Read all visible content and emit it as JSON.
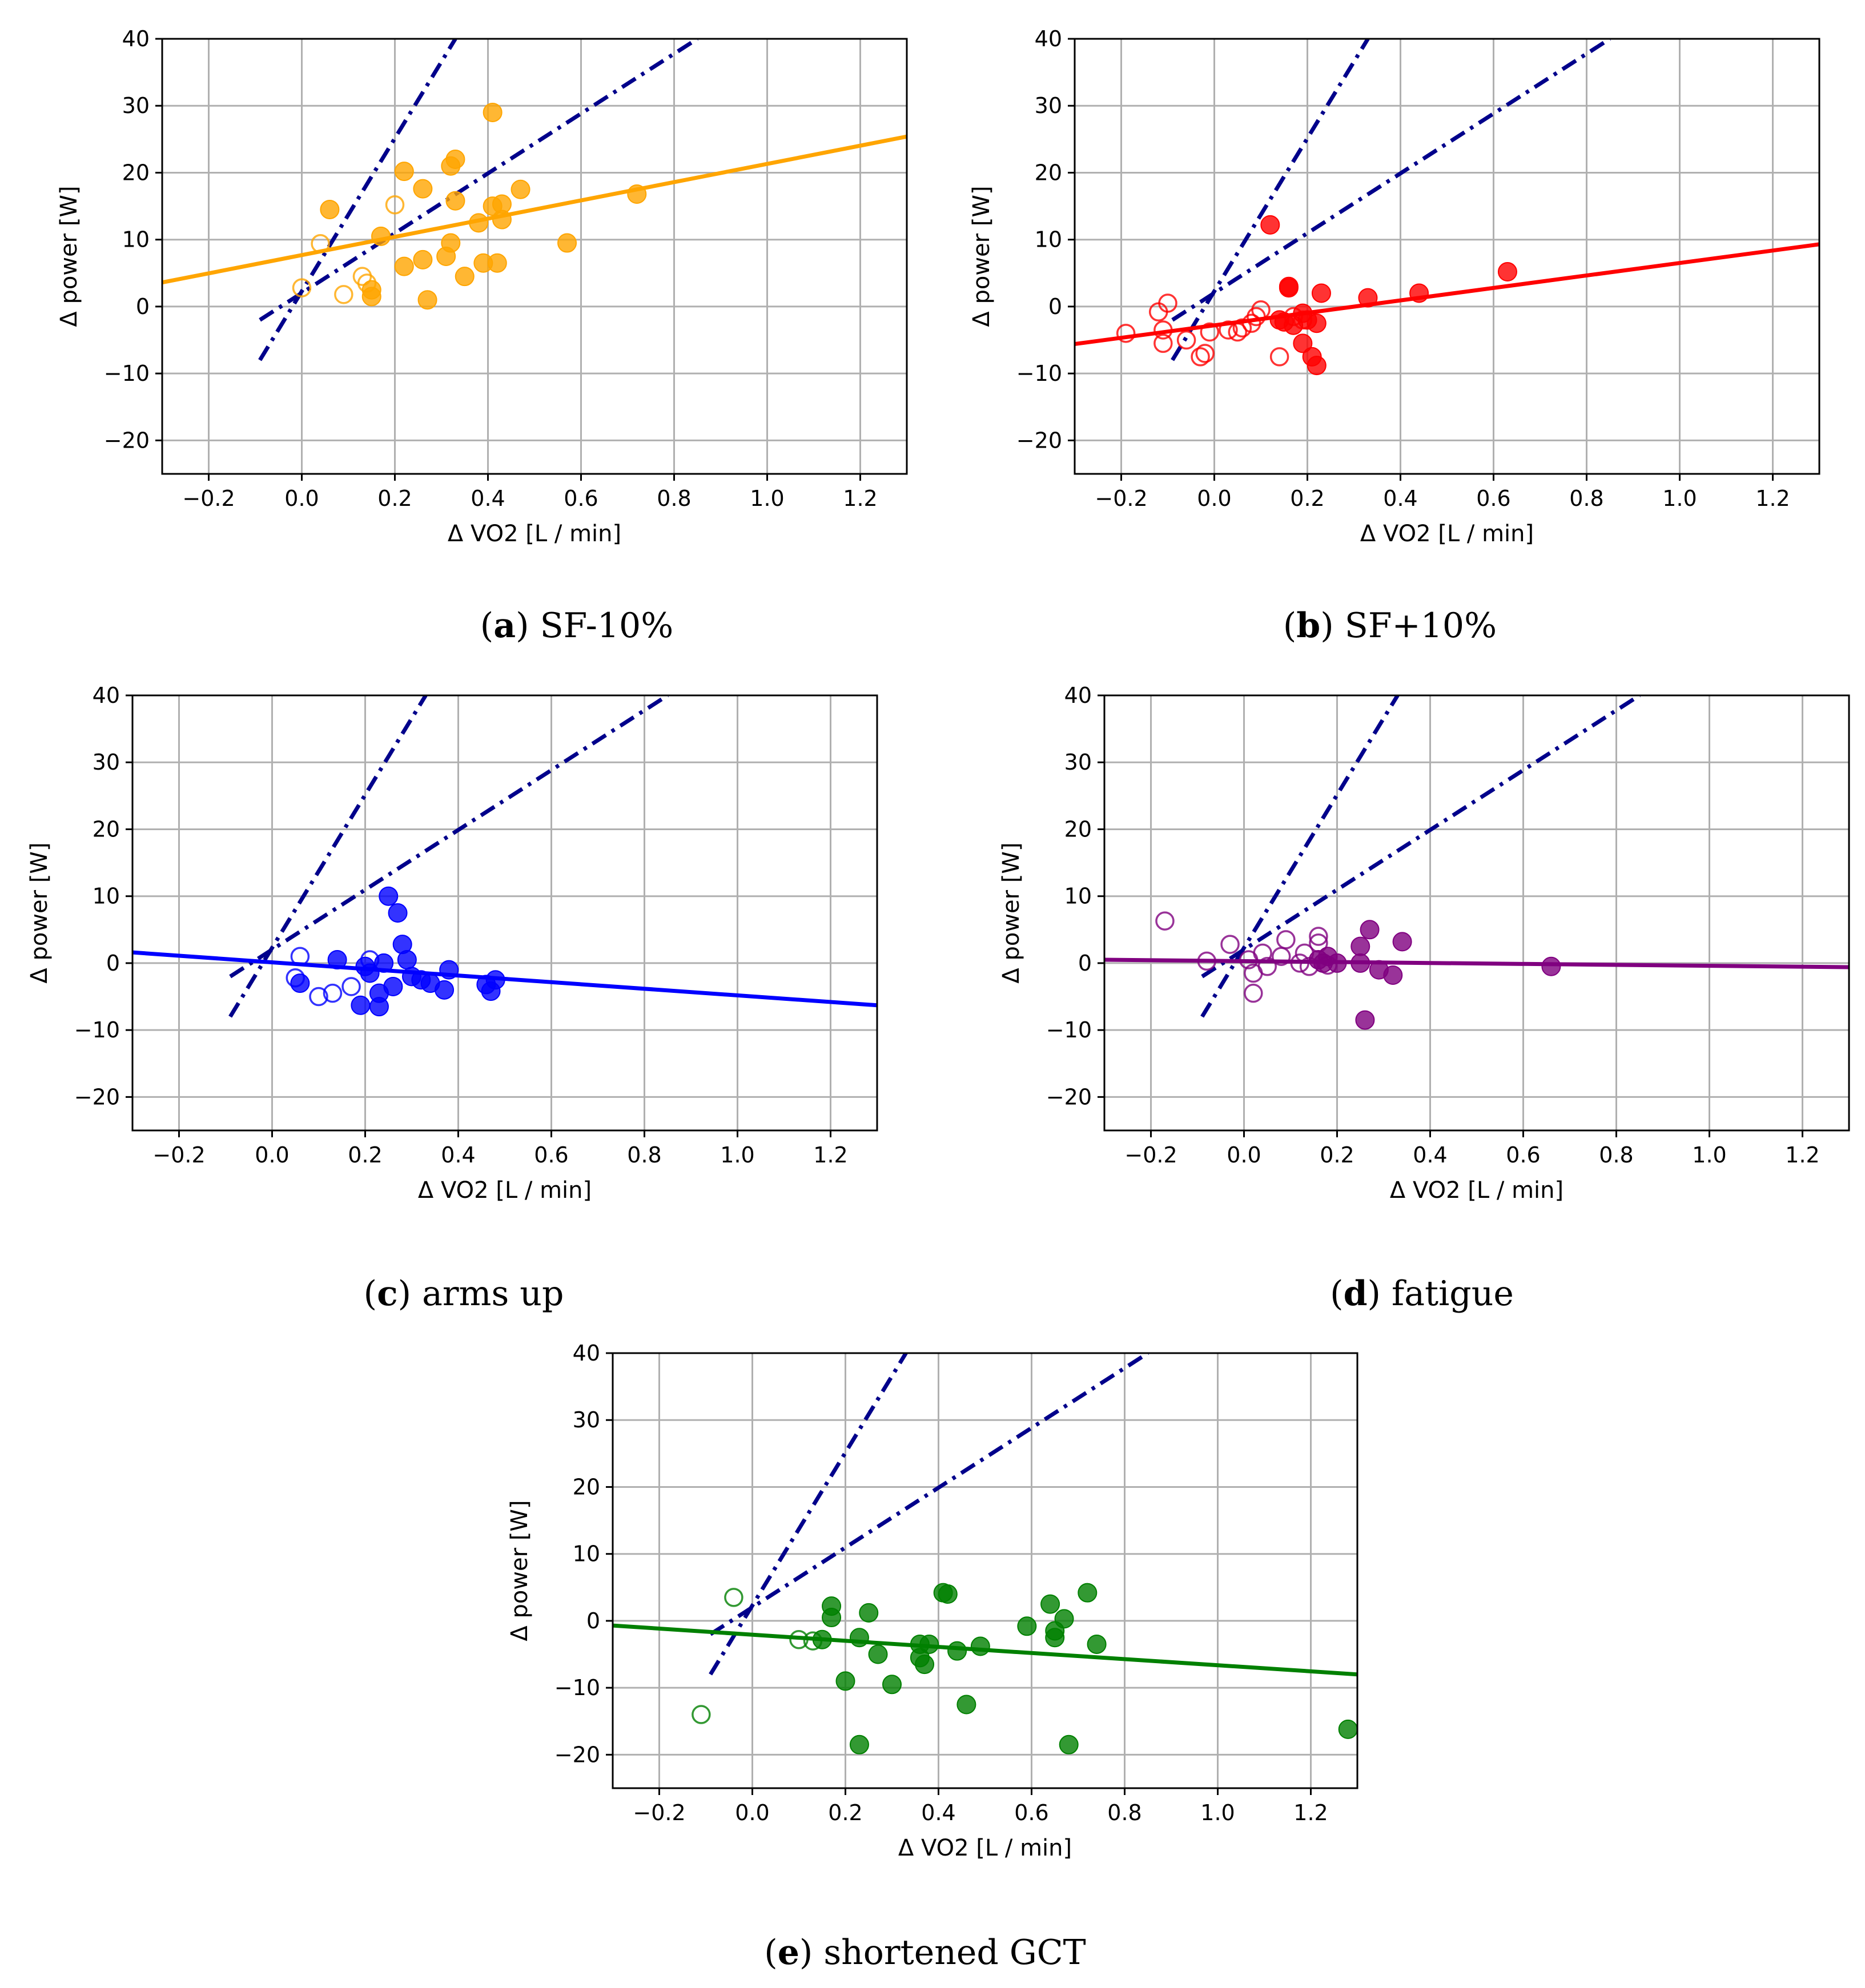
{
  "figure": {
    "captions": [
      {
        "letter": "a",
        "text": "SF-10%"
      },
      {
        "letter": "b",
        "text": "SF+10%"
      },
      {
        "letter": "c",
        "text": "arms up"
      },
      {
        "letter": "d",
        "text": "fatigue"
      },
      {
        "letter": "e",
        "text": "shortened GCT"
      }
    ]
  },
  "chart_data": [
    {
      "type": "scatter",
      "id": "a",
      "caption": "SF-10%",
      "xlabel": "Δ VO2 [L / min]",
      "ylabel": "Δ power [W]",
      "xlim": [
        -0.3,
        1.3
      ],
      "ylim": [
        -25,
        40
      ],
      "xticks": [
        -0.2,
        0.0,
        0.2,
        0.4,
        0.6,
        0.8,
        1.0,
        1.2
      ],
      "yticks": [
        -20,
        -10,
        0,
        10,
        20,
        30,
        40
      ],
      "grid": true,
      "color": "#FFA500",
      "fit_line": {
        "x": [
          -0.3,
          1.3
        ],
        "y": [
          3.6,
          25.4
        ]
      },
      "reference_lines": [
        {
          "style": "dashdot",
          "color": "#00008B",
          "x": [
            -0.09,
            0.33
          ],
          "y": [
            -8,
            40
          ]
        },
        {
          "style": "dashdot",
          "color": "#00008B",
          "x": [
            -0.09,
            0.85
          ],
          "y": [
            -2,
            40
          ]
        }
      ],
      "points_filled": [
        [
          0.06,
          14.5
        ],
        [
          0.17,
          10.5
        ],
        [
          0.22,
          20.2
        ],
        [
          0.22,
          6.0
        ],
        [
          0.26,
          17.6
        ],
        [
          0.26,
          7.0
        ],
        [
          0.27,
          1.0
        ],
        [
          0.31,
          7.5
        ],
        [
          0.32,
          9.5
        ],
        [
          0.32,
          21.0
        ],
        [
          0.33,
          22.0
        ],
        [
          0.33,
          15.8
        ],
        [
          0.35,
          4.5
        ],
        [
          0.38,
          12.5
        ],
        [
          0.39,
          6.5
        ],
        [
          0.41,
          29.0
        ],
        [
          0.41,
          15.0
        ],
        [
          0.42,
          6.5
        ],
        [
          0.43,
          13.0
        ],
        [
          0.43,
          15.3
        ],
        [
          0.47,
          17.5
        ],
        [
          0.57,
          9.5
        ],
        [
          0.72,
          16.8
        ],
        [
          0.15,
          2.5
        ],
        [
          0.15,
          1.5
        ]
      ],
      "points_open": [
        [
          0.0,
          2.8
        ],
        [
          0.04,
          9.4
        ],
        [
          0.09,
          1.8
        ],
        [
          0.13,
          4.5
        ],
        [
          0.14,
          3.5
        ],
        [
          0.2,
          15.2
        ]
      ]
    },
    {
      "type": "scatter",
      "id": "b",
      "caption": "SF+10%",
      "xlabel": "Δ VO2 [L / min]",
      "ylabel": "Δ power [W]",
      "xlim": [
        -0.3,
        1.3
      ],
      "ylim": [
        -25,
        40
      ],
      "xticks": [
        -0.2,
        0.0,
        0.2,
        0.4,
        0.6,
        0.8,
        1.0,
        1.2
      ],
      "yticks": [
        -20,
        -10,
        0,
        10,
        20,
        30,
        40
      ],
      "grid": true,
      "color": "#FF0000",
      "fit_line": {
        "x": [
          -0.3,
          1.3
        ],
        "y": [
          -5.6,
          9.3
        ]
      },
      "reference_lines": [
        {
          "style": "dashdot",
          "color": "#00008B",
          "x": [
            -0.09,
            0.33
          ],
          "y": [
            -8,
            40
          ]
        },
        {
          "style": "dashdot",
          "color": "#00008B",
          "x": [
            -0.09,
            0.85
          ],
          "y": [
            -2,
            40
          ]
        }
      ],
      "points_filled": [
        [
          0.12,
          12.2
        ],
        [
          0.14,
          -2.0
        ],
        [
          0.15,
          -2.3
        ],
        [
          0.16,
          3.0
        ],
        [
          0.16,
          2.8
        ],
        [
          0.17,
          -2.8
        ],
        [
          0.19,
          -5.5
        ],
        [
          0.19,
          -1.0
        ],
        [
          0.2,
          -2.0
        ],
        [
          0.21,
          -7.5
        ],
        [
          0.22,
          -8.8
        ],
        [
          0.22,
          -2.5
        ],
        [
          0.23,
          2.0
        ],
        [
          0.33,
          1.3
        ],
        [
          0.44,
          2.0
        ],
        [
          0.63,
          5.2
        ]
      ],
      "points_open": [
        [
          -0.19,
          -4.0
        ],
        [
          -0.12,
          -0.8
        ],
        [
          -0.11,
          -5.5
        ],
        [
          -0.11,
          -3.5
        ],
        [
          -0.1,
          0.5
        ],
        [
          -0.06,
          -5.0
        ],
        [
          -0.03,
          -7.5
        ],
        [
          -0.02,
          -7.0
        ],
        [
          -0.01,
          -3.8
        ],
        [
          0.03,
          -3.5
        ],
        [
          0.05,
          -3.8
        ],
        [
          0.06,
          -3.2
        ],
        [
          0.08,
          -2.5
        ],
        [
          0.09,
          -1.5
        ],
        [
          0.1,
          -0.5
        ],
        [
          0.14,
          -7.5
        ],
        [
          0.17,
          -1.5
        ],
        [
          0.19,
          -2.0
        ]
      ]
    },
    {
      "type": "scatter",
      "id": "c",
      "caption": "arms up",
      "xlabel": "Δ VO2 [L / min]",
      "ylabel": "Δ power [W]",
      "xlim": [
        -0.3,
        1.3
      ],
      "ylim": [
        -25,
        40
      ],
      "xticks": [
        -0.2,
        0.0,
        0.2,
        0.4,
        0.6,
        0.8,
        1.0,
        1.2
      ],
      "yticks": [
        -20,
        -10,
        0,
        10,
        20,
        30,
        40
      ],
      "grid": true,
      "color": "#0000FF",
      "fit_line": {
        "x": [
          -0.3,
          1.3
        ],
        "y": [
          1.6,
          -6.3
        ]
      },
      "reference_lines": [
        {
          "style": "dashdot",
          "color": "#00008B",
          "x": [
            -0.09,
            0.33
          ],
          "y": [
            -8,
            40
          ]
        },
        {
          "style": "dashdot",
          "color": "#00008B",
          "x": [
            -0.09,
            0.85
          ],
          "y": [
            -2,
            40
          ]
        }
      ],
      "points_filled": [
        [
          0.06,
          -3.0
        ],
        [
          0.14,
          0.5
        ],
        [
          0.19,
          -6.3
        ],
        [
          0.2,
          -0.5
        ],
        [
          0.21,
          -1.5
        ],
        [
          0.23,
          -6.5
        ],
        [
          0.23,
          -4.5
        ],
        [
          0.24,
          0.0
        ],
        [
          0.25,
          10.0
        ],
        [
          0.26,
          -3.5
        ],
        [
          0.27,
          7.5
        ],
        [
          0.28,
          2.8
        ],
        [
          0.29,
          0.5
        ],
        [
          0.3,
          -2.0
        ],
        [
          0.32,
          -2.5
        ],
        [
          0.34,
          -3.0
        ],
        [
          0.37,
          -4.0
        ],
        [
          0.38,
          -1.0
        ],
        [
          0.46,
          -3.2
        ],
        [
          0.47,
          -4.2
        ],
        [
          0.48,
          -2.5
        ]
      ],
      "points_open": [
        [
          0.05,
          -2.2
        ],
        [
          0.06,
          1.0
        ],
        [
          0.1,
          -5.0
        ],
        [
          0.13,
          -4.5
        ],
        [
          0.17,
          -3.5
        ],
        [
          0.21,
          0.5
        ]
      ]
    },
    {
      "type": "scatter",
      "id": "d",
      "caption": "fatigue",
      "xlabel": "Δ VO2 [L / min]",
      "ylabel": "Δ power [W]",
      "xlim": [
        -0.3,
        1.3
      ],
      "ylim": [
        -25,
        40
      ],
      "xticks": [
        -0.2,
        0.0,
        0.2,
        0.4,
        0.6,
        0.8,
        1.0,
        1.2
      ],
      "yticks": [
        -20,
        -10,
        0,
        10,
        20,
        30,
        40
      ],
      "grid": true,
      "color": "#800080",
      "fit_line": {
        "x": [
          -0.3,
          1.3
        ],
        "y": [
          0.5,
          -0.6
        ]
      },
      "reference_lines": [
        {
          "style": "dashdot",
          "color": "#00008B",
          "x": [
            -0.09,
            0.33
          ],
          "y": [
            -8,
            40
          ]
        },
        {
          "style": "dashdot",
          "color": "#00008B",
          "x": [
            -0.09,
            0.85
          ],
          "y": [
            -2,
            40
          ]
        }
      ],
      "points_filled": [
        [
          0.16,
          0.5
        ],
        [
          0.17,
          0.0
        ],
        [
          0.18,
          1.0
        ],
        [
          0.2,
          0.0
        ],
        [
          0.25,
          0.0
        ],
        [
          0.25,
          2.5
        ],
        [
          0.26,
          -8.5
        ],
        [
          0.27,
          5.0
        ],
        [
          0.29,
          -1.0
        ],
        [
          0.32,
          -1.8
        ],
        [
          0.34,
          3.2
        ],
        [
          0.66,
          -0.5
        ]
      ],
      "points_open": [
        [
          -0.17,
          6.3
        ],
        [
          -0.08,
          0.3
        ],
        [
          -0.03,
          2.8
        ],
        [
          0.01,
          0.5
        ],
        [
          0.02,
          -1.5
        ],
        [
          0.02,
          -4.5
        ],
        [
          0.04,
          1.5
        ],
        [
          0.05,
          -0.5
        ],
        [
          0.08,
          1.0
        ],
        [
          0.09,
          3.5
        ],
        [
          0.12,
          0.0
        ],
        [
          0.13,
          1.5
        ],
        [
          0.14,
          -0.5
        ],
        [
          0.16,
          4.0
        ],
        [
          0.16,
          3.0
        ],
        [
          0.18,
          -0.3
        ]
      ]
    },
    {
      "type": "scatter",
      "id": "e",
      "caption": "shortened GCT",
      "xlabel": "Δ VO2 [L / min]",
      "ylabel": "Δ power [W]",
      "xlim": [
        -0.3,
        1.3
      ],
      "ylim": [
        -25,
        40
      ],
      "xticks": [
        -0.2,
        0.0,
        0.2,
        0.4,
        0.6,
        0.8,
        1.0,
        1.2
      ],
      "yticks": [
        -20,
        -10,
        0,
        10,
        20,
        30,
        40
      ],
      "grid": true,
      "color": "#008000",
      "fit_line": {
        "x": [
          -0.3,
          1.3
        ],
        "y": [
          -0.7,
          -8.0
        ]
      },
      "reference_lines": [
        {
          "style": "dashdot",
          "color": "#00008B",
          "x": [
            -0.09,
            0.33
          ],
          "y": [
            -8,
            40
          ]
        },
        {
          "style": "dashdot",
          "color": "#00008B",
          "x": [
            -0.09,
            0.85
          ],
          "y": [
            -2,
            40
          ]
        }
      ],
      "points_filled": [
        [
          0.15,
          -2.8
        ],
        [
          0.17,
          2.2
        ],
        [
          0.17,
          0.5
        ],
        [
          0.2,
          -9.0
        ],
        [
          0.23,
          -18.5
        ],
        [
          0.23,
          -2.5
        ],
        [
          0.25,
          1.2
        ],
        [
          0.27,
          -5.0
        ],
        [
          0.3,
          -9.5
        ],
        [
          0.36,
          -3.5
        ],
        [
          0.36,
          -5.5
        ],
        [
          0.37,
          -6.5
        ],
        [
          0.38,
          -3.5
        ],
        [
          0.41,
          4.2
        ],
        [
          0.42,
          4.0
        ],
        [
          0.44,
          -4.5
        ],
        [
          0.46,
          -12.5
        ],
        [
          0.49,
          -3.8
        ],
        [
          0.59,
          -0.8
        ],
        [
          0.64,
          2.5
        ],
        [
          0.65,
          -1.5
        ],
        [
          0.65,
          -2.5
        ],
        [
          0.67,
          0.3
        ],
        [
          0.68,
          -18.5
        ],
        [
          0.72,
          4.2
        ],
        [
          0.74,
          -3.5
        ],
        [
          1.28,
          -16.2
        ]
      ],
      "points_open": [
        [
          -0.11,
          -14.0
        ],
        [
          -0.04,
          3.5
        ],
        [
          0.1,
          -2.8
        ],
        [
          0.13,
          -3.0
        ]
      ]
    }
  ]
}
